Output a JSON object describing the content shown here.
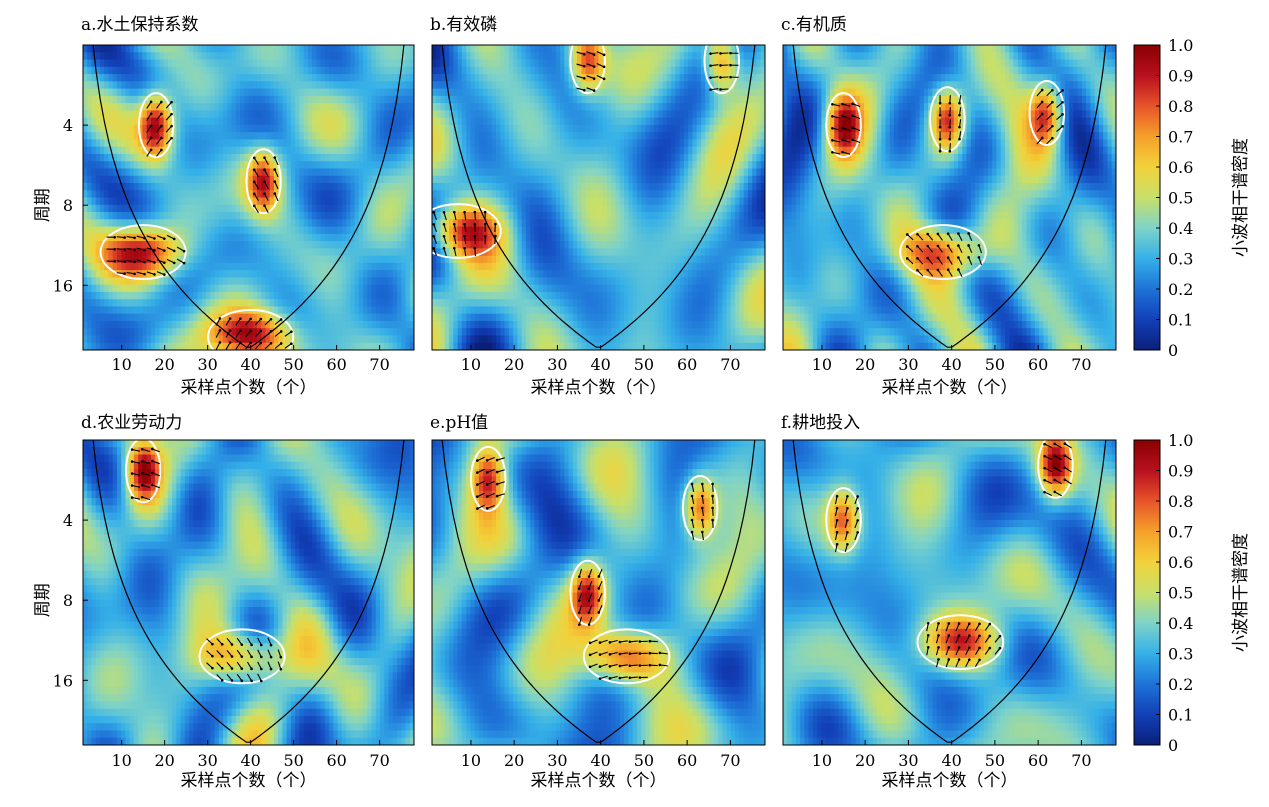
{
  "chart_data": [
    {
      "type": "heatmap",
      "title": "a.水土保持系数",
      "xlabel": "采样点个数（个）",
      "ylabel": "周期",
      "x_ticks": [
        10,
        20,
        30,
        40,
        50,
        60,
        70
      ],
      "y_ticks": [
        4,
        8,
        16
      ],
      "xlim": [
        1,
        78
      ],
      "ylim": [
        2,
        28
      ],
      "high_coherence_regions": [
        {
          "x": 18,
          "period": 4.0,
          "coherence": 0.9
        },
        {
          "x": 43,
          "period": 6.5,
          "coherence": 0.8
        },
        {
          "x": 15,
          "period": 12.0,
          "coherence": 0.85
        },
        {
          "x": 40,
          "period": 25.0,
          "coherence": 0.95
        }
      ]
    },
    {
      "type": "heatmap",
      "title": "b.有效磷",
      "xlabel": "采样点个数（个）",
      "ylabel": "",
      "x_ticks": [
        10,
        20,
        30,
        40,
        50,
        60,
        70
      ],
      "y_ticks": [],
      "xlim": [
        1,
        78
      ],
      "ylim": [
        2,
        28
      ],
      "high_coherence_regions": [
        {
          "x": 7,
          "period": 10.0,
          "coherence": 0.8
        },
        {
          "x": 37,
          "period": 2.3,
          "coherence": 0.8
        },
        {
          "x": 68,
          "period": 2.3,
          "coherence": 0.8
        }
      ]
    },
    {
      "type": "heatmap",
      "title": "c.有机质",
      "xlabel": "采样点个数（个）",
      "ylabel": "",
      "x_ticks": [
        10,
        20,
        30,
        40,
        50,
        60,
        70
      ],
      "y_ticks": [],
      "xlim": [
        1,
        78
      ],
      "ylim": [
        2,
        28
      ],
      "high_coherence_regions": [
        {
          "x": 15,
          "period": 4.0,
          "coherence": 0.75
        },
        {
          "x": 39,
          "period": 3.8,
          "coherence": 0.85
        },
        {
          "x": 62,
          "period": 3.6,
          "coherence": 0.8
        },
        {
          "x": 38,
          "period": 12.0,
          "coherence": 0.8
        }
      ]
    },
    {
      "type": "heatmap",
      "title": "d.农业劳动力",
      "xlabel": "采样点个数（个）",
      "ylabel": "周期",
      "x_ticks": [
        10,
        20,
        30,
        40,
        50,
        60,
        70
      ],
      "y_ticks": [
        4,
        8,
        16
      ],
      "xlim": [
        1,
        78
      ],
      "ylim": [
        2,
        28
      ],
      "high_coherence_regions": [
        {
          "x": 15,
          "period": 2.6,
          "coherence": 0.85
        },
        {
          "x": 38,
          "period": 13.0,
          "coherence": 0.8
        }
      ]
    },
    {
      "type": "heatmap",
      "title": "e.pH值",
      "xlabel": "采样点个数（个）",
      "ylabel": "",
      "x_ticks": [
        10,
        20,
        30,
        40,
        50,
        60,
        70
      ],
      "y_ticks": [],
      "xlim": [
        1,
        78
      ],
      "ylim": [
        2,
        28
      ],
      "high_coherence_regions": [
        {
          "x": 14,
          "period": 2.8,
          "coherence": 0.8
        },
        {
          "x": 63,
          "period": 3.6,
          "coherence": 0.8
        },
        {
          "x": 37,
          "period": 7.5,
          "coherence": 0.8
        },
        {
          "x": 46,
          "period": 13.0,
          "coherence": 0.8
        }
      ]
    },
    {
      "type": "heatmap",
      "title": "f.耕地投入",
      "xlabel": "采样点个数（个）",
      "ylabel": "",
      "x_ticks": [
        10,
        20,
        30,
        40,
        50,
        60,
        70
      ],
      "y_ticks": [],
      "xlim": [
        1,
        78
      ],
      "ylim": [
        2,
        28
      ],
      "high_coherence_regions": [
        {
          "x": 64,
          "period": 2.5,
          "coherence": 0.9
        },
        {
          "x": 15,
          "period": 4.0,
          "coherence": 0.75
        },
        {
          "x": 42,
          "period": 11.5,
          "coherence": 0.8
        }
      ]
    }
  ],
  "colorbar": {
    "label": "小波相干谱密度",
    "ticks": [
      "1.0",
      "0.9",
      "0.8",
      "0.7",
      "0.6",
      "0.5",
      "0.4",
      "0.3",
      "0.2",
      "0.1",
      "0"
    ],
    "range": [
      0,
      1
    ],
    "colors": [
      "#0b1f7a",
      "#1240b8",
      "#1e73d8",
      "#35b0e8",
      "#7ed3c8",
      "#c8e06a",
      "#f2d23a",
      "#f5a02a",
      "#e8532a",
      "#b8101e",
      "#8a0000"
    ]
  }
}
